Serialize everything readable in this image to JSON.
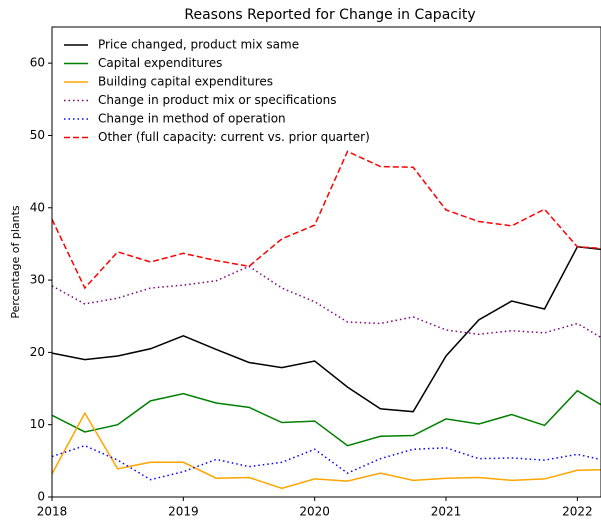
{
  "chart_data": {
    "type": "line",
    "title": "Reasons Reported for Change in Capacity",
    "y_label": "Percentage of plants",
    "x": [
      2018,
      2018.25,
      2018.5,
      2018.75,
      2019,
      2019.25,
      2019.5,
      2019.75,
      2020,
      2020.25,
      2020.5,
      2020.75,
      2021,
      2021.25,
      2021.5,
      2021.75,
      2022,
      2022.25
    ],
    "xlim": [
      2018,
      2022.18
    ],
    "xticks": [
      2018,
      2019,
      2020,
      2021,
      2022
    ],
    "ylim": [
      0,
      65
    ],
    "yticks": [
      0,
      10,
      20,
      30,
      40,
      50,
      60
    ],
    "legend": "upper left",
    "grid": false,
    "series": [
      {
        "name": "Price changed, product mix same",
        "color": "#000000",
        "dash": "solid",
        "values": [
          19.9,
          19.0,
          19.5,
          20.5,
          22.3,
          20.4,
          18.6,
          17.9,
          18.8,
          15.2,
          12.2,
          11.8,
          19.5,
          24.5,
          27.1,
          26.0,
          34.6,
          34.1
        ]
      },
      {
        "name": "Capital expenditures",
        "color": "#008000",
        "dash": "solid",
        "values": [
          11.3,
          9.0,
          10.0,
          13.3,
          14.3,
          13.0,
          12.4,
          10.3,
          10.5,
          7.1,
          8.4,
          8.5,
          10.8,
          10.1,
          11.4,
          9.9,
          14.7,
          12.0
        ]
      },
      {
        "name": "Building capital expenditures",
        "color": "#ffa500",
        "dash": "solid",
        "values": [
          3.2,
          11.6,
          3.9,
          4.8,
          4.8,
          2.6,
          2.7,
          1.2,
          2.5,
          2.2,
          3.3,
          2.3,
          2.6,
          2.7,
          2.3,
          2.5,
          3.7,
          3.8
        ]
      },
      {
        "name": "Change in product mix or specifications",
        "color": "#800080",
        "dash": "dotted",
        "values": [
          29.2,
          26.7,
          27.5,
          28.9,
          29.3,
          29.9,
          31.9,
          28.9,
          27.0,
          24.2,
          24.0,
          24.9,
          23.1,
          22.5,
          23.0,
          22.7,
          24.0,
          21.3
        ]
      },
      {
        "name": "Change in method of operation",
        "color": "#0000ff",
        "dash": "dotted",
        "values": [
          5.6,
          7.1,
          5.1,
          2.4,
          3.5,
          5.2,
          4.2,
          4.8,
          6.6,
          3.3,
          5.3,
          6.6,
          6.8,
          5.3,
          5.4,
          5.1,
          5.9,
          4.9
        ]
      },
      {
        "name": "Other (full capacity: current vs. prior quarter)",
        "color": "#ff0000",
        "dash": "dashed",
        "values": [
          38.4,
          28.9,
          33.9,
          32.5,
          33.7,
          32.7,
          31.9,
          35.7,
          37.6,
          47.8,
          45.7,
          45.6,
          39.7,
          38.1,
          37.5,
          39.8,
          34.6,
          34.3
        ]
      }
    ]
  }
}
